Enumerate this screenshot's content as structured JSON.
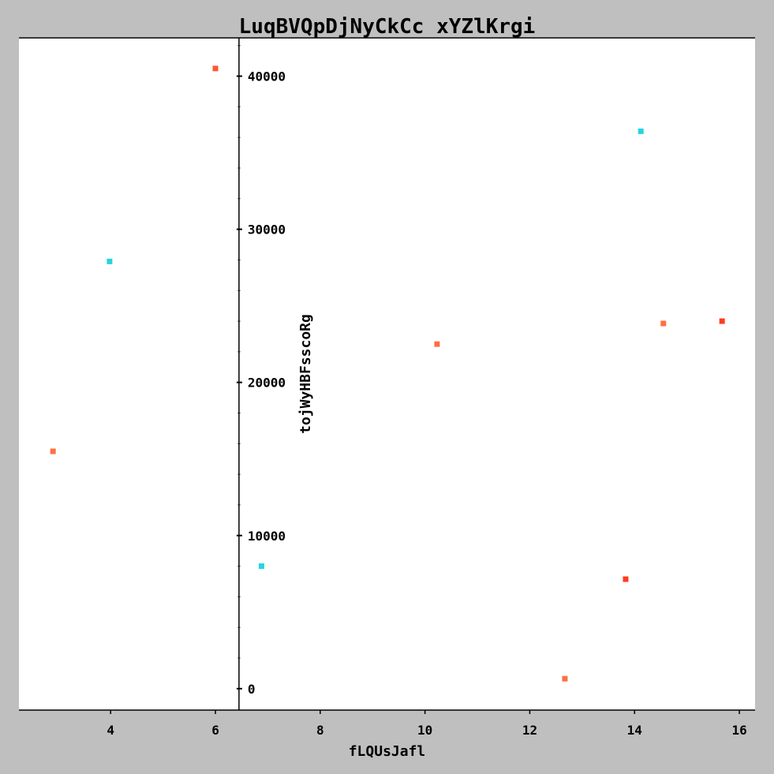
{
  "chart_data": {
    "type": "scatter",
    "title": "LuqBVQpDjNyCkCc xYZlKrgi",
    "xlabel": "fLQUsJafl",
    "ylabel": "tojWyHBFsscoRg",
    "xlim": [
      2.25,
      16.3
    ],
    "ylim": [
      -1400,
      42500
    ],
    "x_ticks": [
      4,
      6,
      8,
      10,
      12,
      14,
      16
    ],
    "y_ticks": [
      0,
      10000,
      20000,
      30000,
      40000
    ],
    "grid": false,
    "y_axis_at_x": 6.45,
    "colors": {
      "background": "#bfbfbf",
      "plot_area": "#ffffff",
      "axis": "#000000",
      "minor_tick": "#3a7a3a"
    },
    "points": [
      {
        "x": 2.9,
        "y": 15500,
        "color": "#ff7043"
      },
      {
        "x": 3.98,
        "y": 27900,
        "color": "#26d4e0"
      },
      {
        "x": 6.0,
        "y": 40500,
        "color": "#ff5733"
      },
      {
        "x": 6.88,
        "y": 8000,
        "color": "#26d4e0"
      },
      {
        "x": 10.23,
        "y": 22500,
        "color": "#ff7043"
      },
      {
        "x": 12.67,
        "y": 650,
        "color": "#ff7043"
      },
      {
        "x": 13.83,
        "y": 7150,
        "color": "#ff3d1f"
      },
      {
        "x": 14.12,
        "y": 36400,
        "color": "#26d4e0"
      },
      {
        "x": 14.55,
        "y": 23850,
        "color": "#ff7043"
      },
      {
        "x": 15.67,
        "y": 24000,
        "color": "#ff3d1f"
      }
    ]
  }
}
